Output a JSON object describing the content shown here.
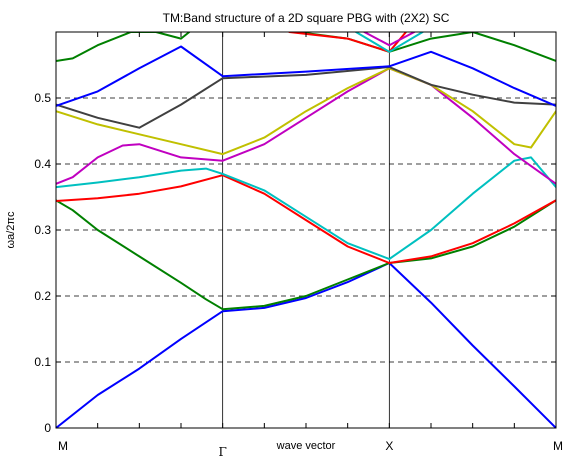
{
  "chart_data": {
    "type": "line",
    "title": "TM:Band structure of a 2D square PBG with (2X2) SC",
    "xlabel": "wave vector",
    "ylabel": "ωa/2πc",
    "ylim": [
      0,
      0.6
    ],
    "xlim": [
      0,
      3
    ],
    "yticks": [
      0,
      0.1,
      0.2,
      0.3,
      0.4,
      0.5
    ],
    "ytick_labels": [
      "0",
      "0.1",
      "0.2",
      "0.3",
      "0.4",
      "0.5"
    ],
    "xticks": [
      0,
      1,
      2,
      3
    ],
    "xtick_labels": [
      "M",
      "Γ",
      "X",
      "M"
    ],
    "grid": "horizontal dashed",
    "series": [
      {
        "color": "#0000ff",
        "x": [
          0,
          0.25,
          0.5,
          0.75,
          1.0
        ],
        "y": [
          0.0,
          0.05,
          0.09,
          0.135,
          0.177
        ]
      },
      {
        "color": "#0000ff",
        "x": [
          1.0,
          1.25,
          1.5,
          1.75,
          2.0
        ],
        "y": [
          0.177,
          0.182,
          0.197,
          0.221,
          0.25
        ]
      },
      {
        "color": "#0000ff",
        "x": [
          2.0,
          2.25,
          2.5,
          2.75,
          3.0
        ],
        "y": [
          0.25,
          0.19,
          0.125,
          0.063,
          0.0
        ]
      },
      {
        "color": "#008000",
        "x": [
          0,
          0.1,
          0.25,
          0.5,
          0.75,
          0.9,
          1.0
        ],
        "y": [
          0.345,
          0.33,
          0.3,
          0.26,
          0.22,
          0.195,
          0.18
        ]
      },
      {
        "color": "#008000",
        "x": [
          1.0,
          1.25,
          1.5,
          1.75,
          2.0
        ],
        "y": [
          0.18,
          0.185,
          0.2,
          0.225,
          0.25
        ]
      },
      {
        "color": "#008000",
        "x": [
          2.0,
          2.25,
          2.5,
          2.75,
          3.0
        ],
        "y": [
          0.25,
          0.257,
          0.275,
          0.305,
          0.345
        ]
      },
      {
        "color": "#ff0000",
        "x": [
          0,
          0.25,
          0.5,
          0.75,
          1.0
        ],
        "y": [
          0.344,
          0.348,
          0.355,
          0.366,
          0.383
        ]
      },
      {
        "color": "#ff0000",
        "x": [
          1.0,
          1.25,
          1.5,
          1.75,
          2.0
        ],
        "y": [
          0.383,
          0.355,
          0.315,
          0.275,
          0.25
        ]
      },
      {
        "color": "#ff0000",
        "x": [
          2.0,
          2.25,
          2.5,
          2.75,
          3.0
        ],
        "y": [
          0.25,
          0.26,
          0.28,
          0.31,
          0.345
        ]
      },
      {
        "color": "#00c0c0",
        "x": [
          0,
          0.25,
          0.5,
          0.75,
          0.9,
          1.0
        ],
        "y": [
          0.365,
          0.372,
          0.38,
          0.39,
          0.393,
          0.385
        ]
      },
      {
        "color": "#00c0c0",
        "x": [
          1.0,
          1.25,
          1.5,
          1.75,
          2.0
        ],
        "y": [
          0.385,
          0.36,
          0.32,
          0.28,
          0.256
        ]
      },
      {
        "color": "#00c0c0",
        "x": [
          2.0,
          2.25,
          2.5,
          2.75,
          2.85,
          3.0
        ],
        "y": [
          0.256,
          0.3,
          0.355,
          0.405,
          0.41,
          0.365
        ]
      },
      {
        "color": "#c000c0",
        "x": [
          0,
          0.1,
          0.25,
          0.4,
          0.5,
          0.75,
          1.0
        ],
        "y": [
          0.37,
          0.38,
          0.41,
          0.428,
          0.43,
          0.41,
          0.405
        ]
      },
      {
        "color": "#c000c0",
        "x": [
          1.0,
          1.25,
          1.5,
          1.75,
          2.0
        ],
        "y": [
          0.405,
          0.43,
          0.47,
          0.51,
          0.545
        ]
      },
      {
        "color": "#c000c0",
        "x": [
          2.0,
          2.25,
          2.5,
          2.75,
          3.0
        ],
        "y": [
          0.545,
          0.52,
          0.47,
          0.415,
          0.37
        ]
      },
      {
        "color": "#c0c000",
        "x": [
          0,
          0.25,
          0.5,
          0.75,
          1.0
        ],
        "y": [
          0.48,
          0.46,
          0.445,
          0.43,
          0.415
        ]
      },
      {
        "color": "#c0c000",
        "x": [
          1.0,
          1.25,
          1.5,
          1.75,
          2.0
        ],
        "y": [
          0.415,
          0.44,
          0.48,
          0.515,
          0.545
        ]
      },
      {
        "color": "#c0c000",
        "x": [
          2.0,
          2.25,
          2.5,
          2.75,
          2.85,
          3.0
        ],
        "y": [
          0.545,
          0.52,
          0.48,
          0.43,
          0.425,
          0.48
        ]
      },
      {
        "color": "#404040",
        "x": [
          0,
          0.25,
          0.5,
          0.75,
          1.0
        ],
        "y": [
          0.49,
          0.47,
          0.455,
          0.49,
          0.53
        ]
      },
      {
        "color": "#404040",
        "x": [
          1.0,
          1.5,
          2.0
        ],
        "y": [
          0.53,
          0.535,
          0.547
        ]
      },
      {
        "color": "#404040",
        "x": [
          2.0,
          2.25,
          2.5,
          2.75,
          3.0
        ],
        "y": [
          0.547,
          0.52,
          0.505,
          0.493,
          0.49
        ]
      },
      {
        "color": "#0000ff",
        "x": [
          0,
          0.25,
          0.5,
          0.75,
          1.0
        ],
        "y": [
          0.488,
          0.51,
          0.545,
          0.578,
          0.533
        ]
      },
      {
        "color": "#0000ff",
        "x": [
          1.0,
          1.5,
          2.0
        ],
        "y": [
          0.533,
          0.54,
          0.548
        ]
      },
      {
        "color": "#0000ff",
        "x": [
          2.0,
          2.25,
          2.5,
          2.75,
          3.0
        ],
        "y": [
          0.548,
          0.57,
          0.545,
          0.515,
          0.488
        ]
      },
      {
        "color": "#008000",
        "x": [
          0,
          0.1,
          0.25,
          0.45,
          0.6,
          0.75,
          0.8
        ],
        "y": [
          0.556,
          0.56,
          0.58,
          0.6,
          0.6,
          0.59,
          0.6
        ]
      },
      {
        "color": "#008000",
        "x": [
          1.45,
          1.75,
          2.0
        ],
        "y": [
          0.6,
          0.59,
          0.57
        ]
      },
      {
        "color": "#008000",
        "x": [
          2.0,
          2.25,
          2.5,
          2.75,
          3.0
        ],
        "y": [
          0.57,
          0.59,
          0.6,
          0.58,
          0.556
        ]
      },
      {
        "color": "#ff0000",
        "x": [
          1.4,
          1.75,
          2.0,
          2.1
        ],
        "y": [
          0.6,
          0.59,
          0.57,
          0.6
        ]
      },
      {
        "color": "#c000c0",
        "x": [
          1.85,
          2.0,
          2.15
        ],
        "y": [
          0.6,
          0.58,
          0.6
        ]
      },
      {
        "color": "#00c0c0",
        "x": [
          1.8,
          2.0,
          2.2
        ],
        "y": [
          0.6,
          0.57,
          0.6
        ]
      }
    ]
  }
}
